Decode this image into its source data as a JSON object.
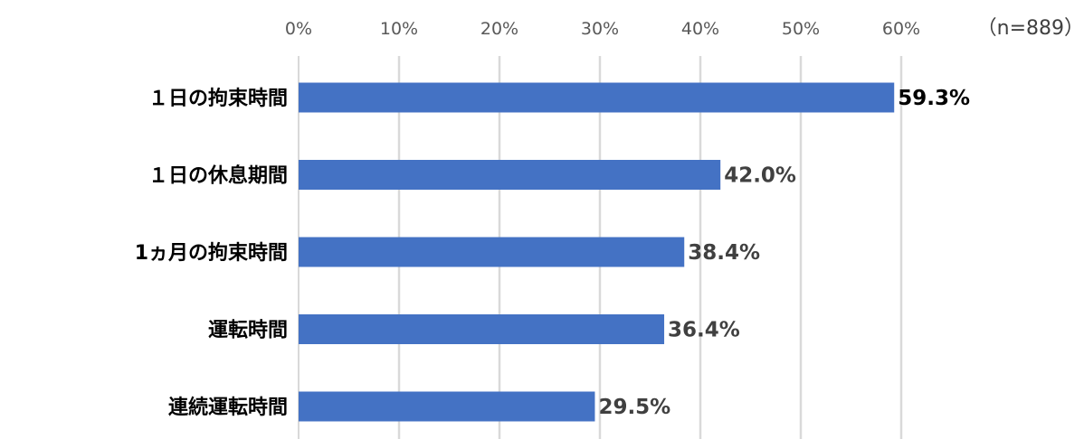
{
  "chart_data": {
    "type": "bar",
    "orientation": "horizontal",
    "sample_size_label": "（n=889）",
    "categories": [
      "１日の拘束時間",
      "１日の休息期間",
      "1ヵ月の拘束時間",
      "運転時間",
      "連続運転時間"
    ],
    "values": [
      59.3,
      42.0,
      38.4,
      36.4,
      29.5
    ],
    "data_labels": [
      "59.3%",
      "42.0%",
      "38.4%",
      "36.4%",
      "29.5%"
    ],
    "x_ticks": [
      "0%",
      "10%",
      "20%",
      "30%",
      "40%",
      "50%",
      "60%"
    ],
    "xlim": [
      0,
      60
    ],
    "xlabel": "",
    "ylabel": "",
    "title": "",
    "grid": true,
    "x_axis_position": "top",
    "colors": {
      "bar": "#4472C4",
      "grid": "#D9D9D9"
    }
  }
}
